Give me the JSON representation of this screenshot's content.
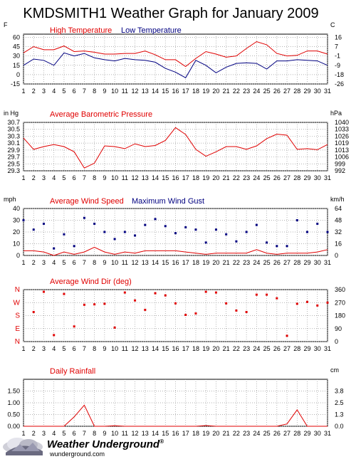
{
  "title": "KMDSMITH1 Weather Graph for January 2009",
  "footer": {
    "brand": "Weather Underground",
    "reg": "®",
    "url": "wunderground.com"
  },
  "colors": {
    "primary": "#e00000",
    "secondary": "#000080",
    "grid": "#999999"
  },
  "chart_data": [
    {
      "type": "line",
      "title": "",
      "left_unit": "F",
      "right_unit": "C",
      "x": [
        1,
        2,
        3,
        4,
        5,
        6,
        7,
        8,
        9,
        10,
        11,
        12,
        13,
        14,
        15,
        16,
        17,
        18,
        19,
        20,
        21,
        22,
        23,
        24,
        25,
        26,
        27,
        28,
        29,
        30,
        31
      ],
      "ylim": [
        -15,
        65
      ],
      "left_ticks": [
        "60",
        "45",
        "30",
        "15",
        "0",
        "-15"
      ],
      "right_ticks": [
        "16",
        "7",
        "-1",
        "-9",
        "-18",
        "-26"
      ],
      "grid": true,
      "legend": "top",
      "series": [
        {
          "name": "High Temperature",
          "color": "#e00000",
          "values": [
            35,
            45,
            40,
            40,
            46,
            37,
            38,
            36,
            33,
            33,
            34,
            34,
            38,
            32,
            24,
            24,
            13,
            26,
            37,
            33,
            28,
            30,
            42,
            53,
            48,
            34,
            30,
            31,
            38,
            38,
            33
          ]
        },
        {
          "name": "Low Temperature",
          "color": "#000080",
          "values": [
            15,
            25,
            23,
            15,
            35,
            30,
            34,
            27,
            24,
            22,
            26,
            24,
            23,
            20,
            10,
            4,
            -5,
            23,
            15,
            3,
            12,
            18,
            19,
            18,
            9,
            22,
            22,
            24,
            23,
            22,
            15
          ]
        }
      ]
    },
    {
      "type": "line",
      "title": "Average Barometric Pressure",
      "left_unit": "in Hg",
      "right_unit": "hPa",
      "x": [
        1,
        2,
        3,
        4,
        5,
        6,
        7,
        8,
        9,
        10,
        11,
        12,
        13,
        14,
        15,
        16,
        17,
        18,
        19,
        20,
        21,
        22,
        23,
        24,
        25,
        26,
        27,
        28,
        29,
        30,
        31
      ],
      "ylim": [
        29.3,
        30.7
      ],
      "left_ticks": [
        "30.7",
        "30.5",
        "30.3",
        "30.1",
        "29.9",
        "29.7",
        "29.5",
        "29.3"
      ],
      "right_ticks": [
        "1040",
        "1033",
        "1026",
        "1019",
        "1013",
        "1006",
        "999",
        "992"
      ],
      "grid": true,
      "legend": "top",
      "series": [
        {
          "name": "Average Barometric Pressure",
          "color": "#e00000",
          "values": [
            30.25,
            29.92,
            30.0,
            30.06,
            30.0,
            29.85,
            29.38,
            29.52,
            30.02,
            30.0,
            29.94,
            30.08,
            30.0,
            30.03,
            30.18,
            30.55,
            30.35,
            29.92,
            29.72,
            29.85,
            30.0,
            30.0,
            29.92,
            30.02,
            30.23,
            30.36,
            30.33,
            29.92,
            29.94,
            29.91,
            30.06
          ]
        }
      ]
    },
    {
      "type": "scatter",
      "title": "",
      "left_unit": "mph",
      "right_unit": "km/h",
      "x": [
        1,
        2,
        3,
        4,
        5,
        6,
        7,
        8,
        9,
        10,
        11,
        12,
        13,
        14,
        15,
        16,
        17,
        18,
        19,
        20,
        21,
        22,
        23,
        24,
        25,
        26,
        27,
        28,
        29,
        30,
        31
      ],
      "ylim": [
        0,
        40
      ],
      "left_ticks": [
        "40",
        "30",
        "20",
        "10",
        "0"
      ],
      "right_ticks": [
        "64",
        "48",
        "32",
        "16",
        "0"
      ],
      "grid": true,
      "legend": "top",
      "series": [
        {
          "name": "Average Wind Speed",
          "color": "#e00000",
          "style": "line",
          "values": [
            4,
            4,
            3,
            0,
            3,
            1,
            3,
            7,
            3,
            1,
            3,
            2,
            4,
            4,
            4,
            4,
            3,
            2,
            1,
            2,
            2,
            2,
            2,
            5,
            2,
            1,
            2,
            2,
            2,
            3,
            5
          ]
        },
        {
          "name": "Maximum Wind Gust",
          "color": "#000080",
          "style": "points",
          "values": [
            30,
            22,
            27,
            6,
            18,
            8,
            32,
            27,
            20,
            14,
            20,
            17,
            26,
            31,
            25,
            19,
            24,
            22,
            11,
            22,
            18,
            12,
            20,
            26,
            11,
            8,
            8,
            30,
            20,
            27,
            20
          ]
        }
      ]
    },
    {
      "type": "scatter",
      "title": "Average Wind Dir (deg)",
      "left_unit": "",
      "right_unit": "",
      "x": [
        1,
        2,
        3,
        4,
        5,
        6,
        7,
        8,
        9,
        10,
        11,
        12,
        13,
        14,
        15,
        16,
        17,
        18,
        19,
        20,
        21,
        22,
        23,
        24,
        25,
        26,
        27,
        28,
        29,
        30,
        31
      ],
      "ylim": [
        0,
        360
      ],
      "left_ticks": [
        "N",
        "W",
        "S",
        "E",
        "N"
      ],
      "right_ticks": [
        "360",
        "270",
        "180",
        "90",
        "0"
      ],
      "grid": true,
      "legend": "top",
      "series": [
        {
          "name": "Average Wind Dir (deg)",
          "color": "#e00000",
          "style": "points",
          "values": [
            null,
            205,
            345,
            45,
            330,
            105,
            255,
            258,
            262,
            97,
            340,
            285,
            220,
            335,
            320,
            265,
            185,
            195,
            345,
            340,
            265,
            215,
            205,
            325,
            325,
            300,
            40,
            262,
            275,
            250,
            270
          ]
        }
      ]
    },
    {
      "type": "line",
      "title": "Daily Rainfall",
      "left_unit": "in",
      "right_unit": "cm",
      "x": [
        1,
        2,
        3,
        4,
        5,
        6,
        7,
        8,
        9,
        10,
        11,
        12,
        13,
        14,
        15,
        16,
        17,
        18,
        19,
        20,
        21,
        22,
        23,
        24,
        25,
        26,
        27,
        28,
        29,
        30,
        31
      ],
      "ylim": [
        0,
        2.0
      ],
      "left_ticks": [
        "1.50",
        "1.00",
        "0.50",
        "0.00"
      ],
      "right_ticks": [
        "3.8",
        "2.5",
        "1.3",
        "0.0"
      ],
      "grid": true,
      "legend": "top",
      "series": [
        {
          "name": "Daily Rainfall",
          "color": "#e00000",
          "values": [
            0,
            0,
            0,
            0,
            0,
            0.4,
            0.9,
            0,
            0,
            0.02,
            0,
            0,
            0,
            0,
            0,
            0,
            0,
            0,
            0.03,
            0,
            0,
            0,
            0,
            0,
            0,
            0,
            0.1,
            0.7,
            0,
            0,
            0
          ]
        }
      ]
    }
  ]
}
